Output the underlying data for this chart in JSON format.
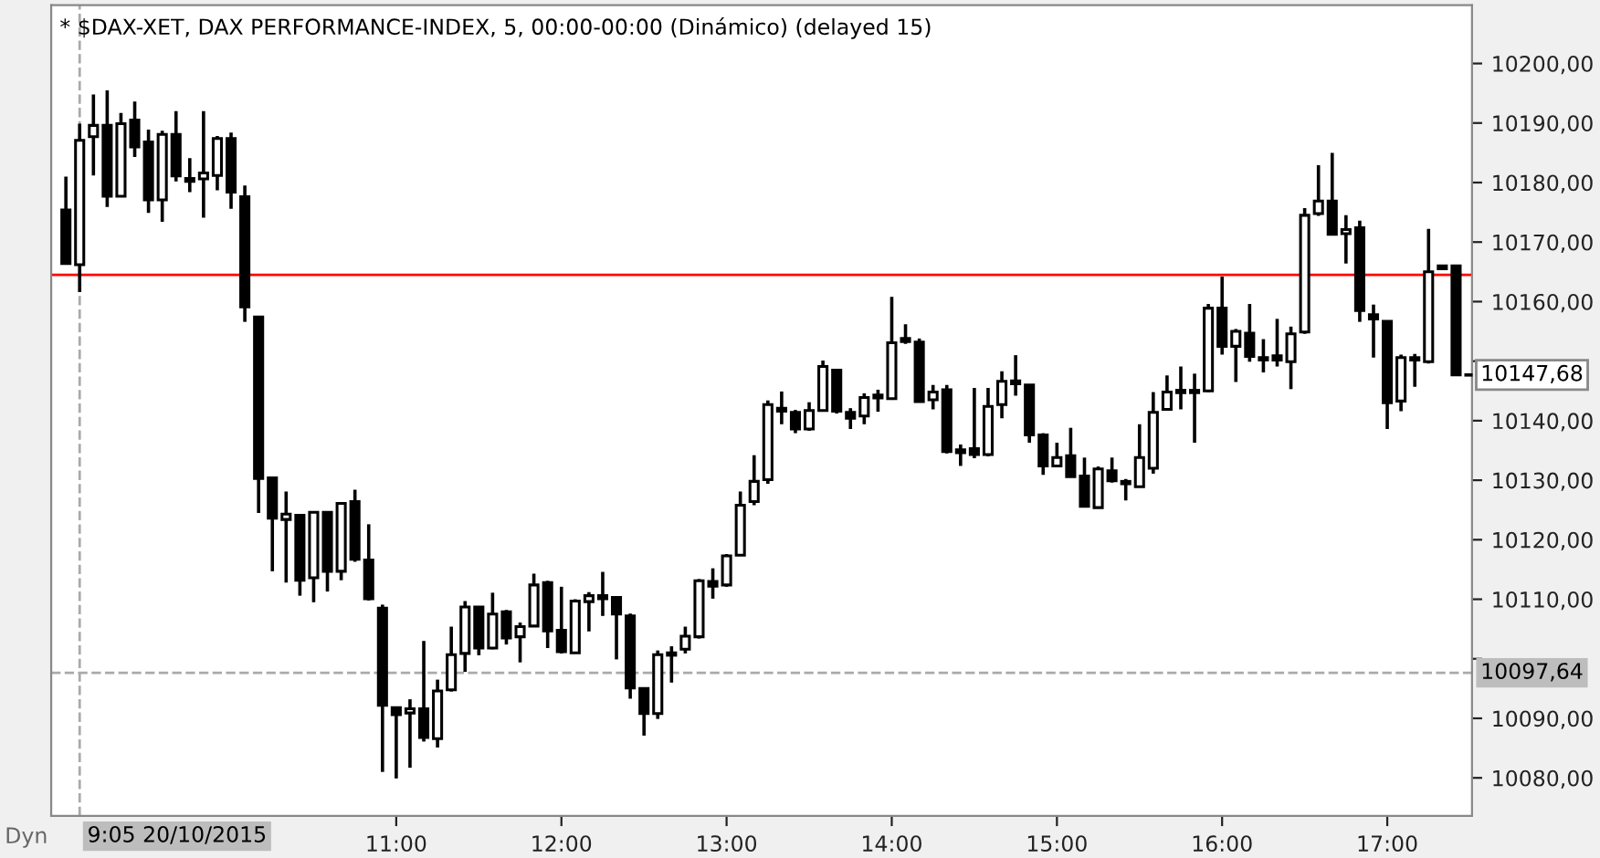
{
  "chart_data": {
    "type": "candlestick",
    "title": "* $DAX-XET, DAX PERFORMANCE-INDEX, 5, 00:00-00:00 (Dinámico) (delayed 15)",
    "x": [
      9,
      9.0833,
      9.1667,
      9.25,
      9.3333,
      9.4167,
      9.5,
      9.5833,
      9.6667,
      9.75,
      9.8333,
      9.9167,
      10,
      10.0833,
      10.1667,
      10.25,
      10.3333,
      10.4167,
      10.5,
      10.5833,
      10.6667,
      10.75,
      10.8333,
      10.9167,
      11,
      11.0833,
      11.1667,
      11.25,
      11.3333,
      11.4167,
      11.5,
      11.5833,
      11.6667,
      11.75,
      11.8333,
      11.9167,
      12,
      12.0833,
      12.1667,
      12.25,
      12.3333,
      12.4167,
      12.5,
      12.5833,
      12.6667,
      12.75,
      12.8333,
      12.9167,
      13,
      13.0833,
      13.1667,
      13.25,
      13.3333,
      13.4167,
      13.5,
      13.5833,
      13.6667,
      13.75,
      13.8333,
      13.9167,
      14,
      14.0833,
      14.1667,
      14.25,
      14.3333,
      14.4167,
      14.5,
      14.5833,
      14.6667,
      14.75,
      14.8333,
      14.9167,
      15,
      15.0833,
      15.1667,
      15.25,
      15.3333,
      15.4167,
      15.5,
      15.5833,
      15.6667,
      15.75,
      15.8333,
      15.9167,
      16,
      16.0833,
      16.1667,
      16.25,
      16.3333,
      16.4167,
      16.5,
      16.5833,
      16.6667,
      16.75,
      16.8333,
      16.9167,
      17,
      17.0833,
      17.1667,
      17.25,
      17.3333,
      17.4167
    ],
    "ohlc": [
      [
        10175.4,
        10181.0,
        10166.4,
        10166.4
      ],
      [
        10166.2,
        10189.9,
        10161.6,
        10187.1
      ],
      [
        10187.7,
        10194.8,
        10181.2,
        10189.6
      ],
      [
        10189.6,
        10195.5,
        10175.9,
        10177.7
      ],
      [
        10177.7,
        10191.7,
        10177.7,
        10189.9
      ],
      [
        10190.5,
        10193.6,
        10184.3,
        10186.0
      ],
      [
        10186.8,
        10188.9,
        10174.9,
        10177.1
      ],
      [
        10177.1,
        10188.7,
        10173.4,
        10188.1
      ],
      [
        10188.1,
        10192.0,
        10180.2,
        10181.1
      ],
      [
        10180.7,
        10184.1,
        10178.4,
        10180.2
      ],
      [
        10180.6,
        10192.0,
        10174.1,
        10181.6
      ],
      [
        10181.2,
        10187.8,
        10178.7,
        10187.4
      ],
      [
        10187.4,
        10188.4,
        10175.6,
        10178.4
      ],
      [
        10177.6,
        10179.5,
        10156.6,
        10159.1
      ],
      [
        10157.4,
        10157.4,
        10124.5,
        10130.3
      ],
      [
        10130.4,
        10130.4,
        10114.7,
        10123.6
      ],
      [
        10123.4,
        10128.1,
        10112.8,
        10124.3
      ],
      [
        10124.1,
        10124.1,
        10110.6,
        10113.2
      ],
      [
        10113.6,
        10124.6,
        10109.5,
        10124.6
      ],
      [
        10124.6,
        10124.6,
        10111.3,
        10114.7
      ],
      [
        10114.7,
        10126.1,
        10113.2,
        10126.1
      ],
      [
        10126.4,
        10128.4,
        10116.3,
        10116.7
      ],
      [
        10116.6,
        10122.6,
        10109.8,
        10110.1
      ],
      [
        10108.5,
        10109.1,
        10081.0,
        10092.2
      ],
      [
        10091.8,
        10091.8,
        10079.9,
        10090.6
      ],
      [
        10090.9,
        10093.2,
        10081.7,
        10091.6
      ],
      [
        10091.6,
        10103.0,
        10086.1,
        10086.8
      ],
      [
        10086.6,
        10096.5,
        10085.1,
        10094.6
      ],
      [
        10094.8,
        10105.4,
        10094.5,
        10100.7
      ],
      [
        10100.9,
        10109.7,
        10097.8,
        10108.7
      ],
      [
        10108.7,
        10108.7,
        10100.6,
        10101.8
      ],
      [
        10101.8,
        10111.1,
        10101.6,
        10107.5
      ],
      [
        10107.9,
        10108.2,
        10102.4,
        10103.5
      ],
      [
        10103.7,
        10106.1,
        10099.4,
        10105.4
      ],
      [
        10105.5,
        10114.3,
        10105.5,
        10112.4
      ],
      [
        10112.8,
        10113.1,
        10101.8,
        10104.7
      ],
      [
        10104.8,
        10112.1,
        10100.9,
        10101.2
      ],
      [
        10101.0,
        10110.0,
        10101.0,
        10109.7
      ],
      [
        10109.6,
        10111.2,
        10104.6,
        10110.6
      ],
      [
        10110.6,
        10114.6,
        10107.2,
        10110.1
      ],
      [
        10110.3,
        10110.3,
        10099.9,
        10107.5
      ],
      [
        10107.2,
        10107.6,
        10093.3,
        10095.1
      ],
      [
        10095.0,
        10095.0,
        10087.1,
        10090.8
      ],
      [
        10090.8,
        10101.4,
        10089.9,
        10100.7
      ],
      [
        10101.0,
        10102.1,
        10096.0,
        10100.6
      ],
      [
        10101.6,
        10105.4,
        10100.9,
        10103.8
      ],
      [
        10103.7,
        10113.4,
        10103.4,
        10113.1
      ],
      [
        10113.0,
        10115.2,
        10110.1,
        10112.2
      ],
      [
        10112.4,
        10117.6,
        10112.1,
        10117.3
      ],
      [
        10117.4,
        10128.1,
        10117.3,
        10125.8
      ],
      [
        10126.4,
        10134.2,
        10125.8,
        10129.8
      ],
      [
        10130.1,
        10143.4,
        10129.4,
        10142.7
      ],
      [
        10142.1,
        10144.9,
        10139.4,
        10141.6
      ],
      [
        10141.4,
        10141.8,
        10137.9,
        10138.6
      ],
      [
        10138.6,
        10143.1,
        10138.3,
        10141.7
      ],
      [
        10141.7,
        10150.1,
        10141.7,
        10149.1
      ],
      [
        10148.5,
        10148.5,
        10141.2,
        10141.6
      ],
      [
        10141.4,
        10142.1,
        10138.6,
        10140.4
      ],
      [
        10140.8,
        10144.6,
        10139.4,
        10143.9
      ],
      [
        10144.3,
        10145.2,
        10141.5,
        10143.8
      ],
      [
        10143.7,
        10160.8,
        10143.5,
        10153.1
      ],
      [
        10153.8,
        10156.2,
        10152.9,
        10153.3
      ],
      [
        10153.2,
        10153.8,
        10143.2,
        10143.2
      ],
      [
        10143.5,
        10146.0,
        10141.9,
        10144.8
      ],
      [
        10145.2,
        10146.0,
        10134.5,
        10134.8
      ],
      [
        10135.1,
        10136.0,
        10132.4,
        10134.6
      ],
      [
        10135.3,
        10145.5,
        10133.7,
        10134.3
      ],
      [
        10134.3,
        10145.5,
        10134.0,
        10142.4
      ],
      [
        10142.7,
        10148.3,
        10140.4,
        10146.6
      ],
      [
        10146.7,
        10151.0,
        10144.2,
        10146.2
      ],
      [
        10146.0,
        10146.0,
        10136.3,
        10137.6
      ],
      [
        10137.6,
        10137.9,
        10130.9,
        10132.4
      ],
      [
        10132.4,
        10136.3,
        10132.4,
        10133.8
      ],
      [
        10134.1,
        10138.8,
        10130.6,
        10130.6
      ],
      [
        10130.7,
        10133.8,
        10125.6,
        10125.6
      ],
      [
        10125.4,
        10132.3,
        10125.4,
        10131.9
      ],
      [
        10131.6,
        10133.8,
        10129.6,
        10129.9
      ],
      [
        10129.8,
        10130.2,
        10126.6,
        10129.4
      ],
      [
        10128.9,
        10139.4,
        10128.9,
        10133.8
      ],
      [
        10132.0,
        10144.8,
        10131.1,
        10141.4
      ],
      [
        10141.9,
        10147.6,
        10141.9,
        10144.8
      ],
      [
        10145.1,
        10149.1,
        10141.9,
        10144.7
      ],
      [
        10145.1,
        10147.9,
        10136.3,
        10144.7
      ],
      [
        10145.0,
        10159.6,
        10144.8,
        10158.9
      ],
      [
        10158.9,
        10164.2,
        10151.1,
        10152.5
      ],
      [
        10152.5,
        10155.4,
        10146.5,
        10155.0
      ],
      [
        10154.7,
        10159.6,
        10149.9,
        10150.8
      ],
      [
        10150.6,
        10153.7,
        10148.1,
        10150.2
      ],
      [
        10150.9,
        10157.1,
        10149.1,
        10150.2
      ],
      [
        10149.9,
        10155.8,
        10145.3,
        10154.6
      ],
      [
        10154.9,
        10175.7,
        10154.6,
        10174.5
      ],
      [
        10174.8,
        10182.9,
        10174.4,
        10176.9
      ],
      [
        10176.9,
        10185.0,
        10171.3,
        10171.3
      ],
      [
        10171.4,
        10174.5,
        10166.4,
        10172.1
      ],
      [
        10172.4,
        10173.6,
        10156.6,
        10158.5
      ],
      [
        10157.8,
        10159.5,
        10150.6,
        10157.1
      ],
      [
        10156.7,
        10156.7,
        10138.6,
        10143.0
      ],
      [
        10143.3,
        10151.1,
        10141.6,
        10150.6
      ],
      [
        10150.6,
        10151.2,
        10145.7,
        10150.2
      ],
      [
        10149.9,
        10172.2,
        10149.6,
        10165.0
      ],
      [
        10166.0,
        10166.0,
        10165.5,
        10165.5
      ],
      [
        10166.0,
        10166.0,
        10147.7,
        10147.7
      ]
    ],
    "xlim": [
      8.911,
      17.513
    ],
    "xticks": [
      {
        "value": 11,
        "label": "11:00"
      },
      {
        "value": 12,
        "label": "12:00"
      },
      {
        "value": 13,
        "label": "13:00"
      },
      {
        "value": 14,
        "label": "14:00"
      },
      {
        "value": 15,
        "label": "15:00"
      },
      {
        "value": 16,
        "label": "16:00"
      },
      {
        "value": 17,
        "label": "17:00"
      }
    ],
    "ylim": [
      10073.6,
      10209.8
    ],
    "yticks": [
      {
        "value": 10080,
        "label": "10080,00"
      },
      {
        "value": 10090,
        "label": "10090,00"
      },
      {
        "value": 10100,
        "label": null
      },
      {
        "value": 10110,
        "label": "10110,00"
      },
      {
        "value": 10120,
        "label": "10120,00"
      },
      {
        "value": 10130,
        "label": "10130,00"
      },
      {
        "value": 10140,
        "label": "10140,00"
      },
      {
        "value": 10150,
        "label": null
      },
      {
        "value": 10160,
        "label": "10160,00"
      },
      {
        "value": 10170,
        "label": "10170,00"
      },
      {
        "value": 10180,
        "label": "10180,00"
      },
      {
        "value": 10190,
        "label": "10190,00"
      },
      {
        "value": 10200,
        "label": "10200,00"
      }
    ],
    "ref_lines": [
      {
        "axis": "y",
        "value": 10164.5,
        "color": "#ff0000",
        "line_style": "solid"
      },
      {
        "axis": "y",
        "value": 10097.64,
        "label": "10097,64",
        "color": "#aaaaaa",
        "line_style": "dashed"
      },
      {
        "axis": "x",
        "value": 9.0833,
        "label": "9:05 20/10/2015",
        "color": "#aaaaaa",
        "line_style": "dashed"
      }
    ],
    "annotations": [
      {
        "text": "10147,68",
        "x": 17.4167,
        "y": 10147.68
      },
      "Dyn"
    ]
  }
}
